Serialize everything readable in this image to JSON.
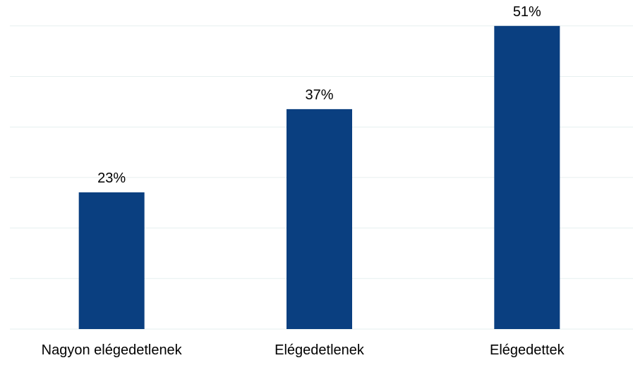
{
  "chart_data": {
    "type": "bar",
    "categories": [
      "Nagyon elégedetlenek",
      "Elégedetlenek",
      "Elégedettek"
    ],
    "values": [
      23,
      37,
      51
    ],
    "data_labels": [
      "23%",
      "37%",
      "51%"
    ],
    "title": "",
    "xlabel": "",
    "ylabel": "",
    "ylim": [
      0,
      51.5
    ],
    "grid": true,
    "legend": "none",
    "bar_color": "#0a3f80",
    "grid_color": "#e6efef"
  }
}
